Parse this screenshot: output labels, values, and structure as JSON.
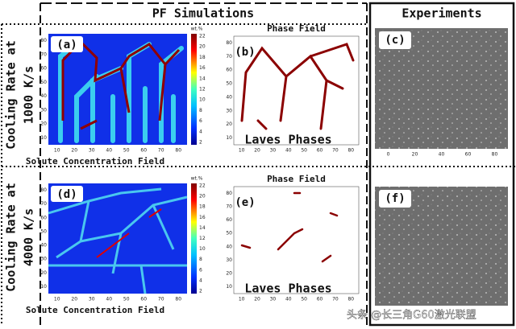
{
  "header": {
    "simulations": "PF Simulations",
    "experiments": "Experiments"
  },
  "rows": [
    {
      "label_lines": [
        "Cooling Rate at",
        "1000 K/s"
      ],
      "concentration": {
        "label": "(a)",
        "unit": "wt.%",
        "colorbar_ticks": [
          22,
          20,
          18,
          16,
          14,
          12,
          10,
          8,
          6,
          4,
          2
        ],
        "xticks": [
          10,
          20,
          30,
          40,
          50,
          60,
          70,
          80
        ],
        "yticks": [
          80,
          70,
          60,
          50,
          40,
          30,
          20,
          10
        ],
        "caption": "Solute Concentration Field"
      },
      "phase": {
        "title": "Phase Field",
        "label": "(b)",
        "caption": "Laves Phases",
        "xticks": [
          10,
          20,
          30,
          40,
          50,
          60,
          70,
          80
        ],
        "yticks": [
          80,
          70,
          60,
          50,
          40,
          30,
          20,
          10
        ]
      },
      "experiment": {
        "label": "(c)",
        "xticks": [
          0,
          20,
          40,
          60,
          80
        ]
      }
    },
    {
      "label_lines": [
        "Cooling Rate at",
        "4000 K/s"
      ],
      "concentration": {
        "label": "(d)",
        "unit": "wt.%",
        "colorbar_ticks": [
          22,
          20,
          18,
          16,
          14,
          12,
          10,
          8,
          6,
          4,
          2
        ],
        "xticks": [
          10,
          20,
          30,
          40,
          50,
          60,
          70,
          80
        ],
        "yticks": [
          80,
          70,
          60,
          50,
          40,
          30,
          20,
          10
        ],
        "caption": "Solute Concentration Field"
      },
      "phase": {
        "title": "Phase Field",
        "label": "(e)",
        "caption": "Laves Phases",
        "xticks": [
          10,
          20,
          30,
          40,
          50,
          60,
          70,
          80
        ],
        "yticks": [
          80,
          70,
          60,
          50,
          40,
          30,
          20,
          10
        ]
      },
      "experiment": {
        "label": "(f)"
      }
    }
  ],
  "watermark": "头条 @长三角G60激光联盟"
}
